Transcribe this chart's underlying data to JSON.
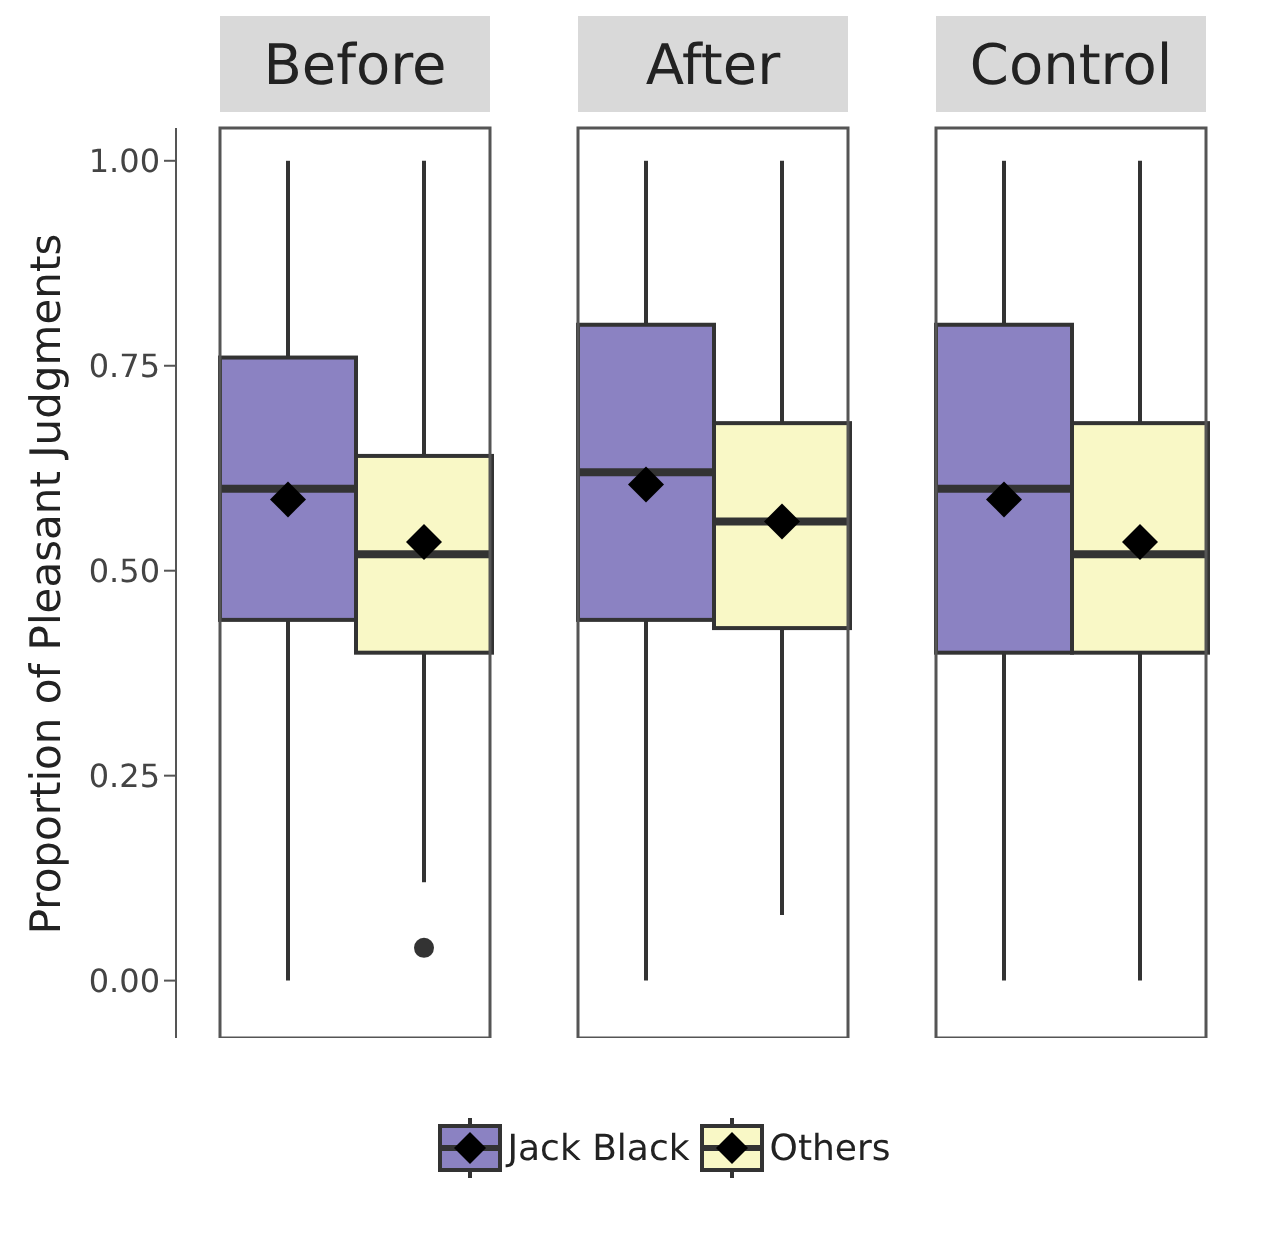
{
  "chart_data": {
    "type": "box",
    "ylabel": "Proportion of Pleasant Judgments",
    "categories": [
      "Before",
      "After",
      "Control"
    ],
    "ylim": [
      -0.07,
      1.04
    ],
    "yticks": [
      {
        "value": 0,
        "label": "0.00"
      },
      {
        "value": 0.25,
        "label": "0.25"
      },
      {
        "value": 0.5,
        "label": "0.50"
      },
      {
        "value": 0.75,
        "label": "0.75"
      },
      {
        "value": 1,
        "label": "1.00"
      }
    ],
    "legend": "bottom",
    "series": [
      {
        "name": "Jack Black",
        "color": "#8b82c2",
        "boxes": [
          {
            "low": 0,
            "q1": 0.44,
            "median": 0.6,
            "q3": 0.76,
            "high": 1,
            "mean": 0.587
          },
          {
            "low": 0,
            "q1": 0.44,
            "median": 0.62,
            "q3": 0.8,
            "high": 1,
            "mean": 0.605
          },
          {
            "low": 0,
            "q1": 0.4,
            "median": 0.6,
            "q3": 0.8,
            "high": 1,
            "mean": 0.587
          }
        ]
      },
      {
        "name": "Others",
        "color": "#f9f8c6",
        "boxes": [
          {
            "low": 0.12,
            "q1": 0.4,
            "median": 0.52,
            "q3": 0.64,
            "high": 1,
            "mean": 0.535,
            "outliers": [
              0.04
            ]
          },
          {
            "low": 0.08,
            "q1": 0.43,
            "median": 0.56,
            "q3": 0.68,
            "high": 1,
            "mean": 0.56
          },
          {
            "low": 0,
            "q1": 0.4,
            "median": 0.52,
            "q3": 0.68,
            "high": 1,
            "mean": 0.535
          }
        ]
      }
    ]
  }
}
